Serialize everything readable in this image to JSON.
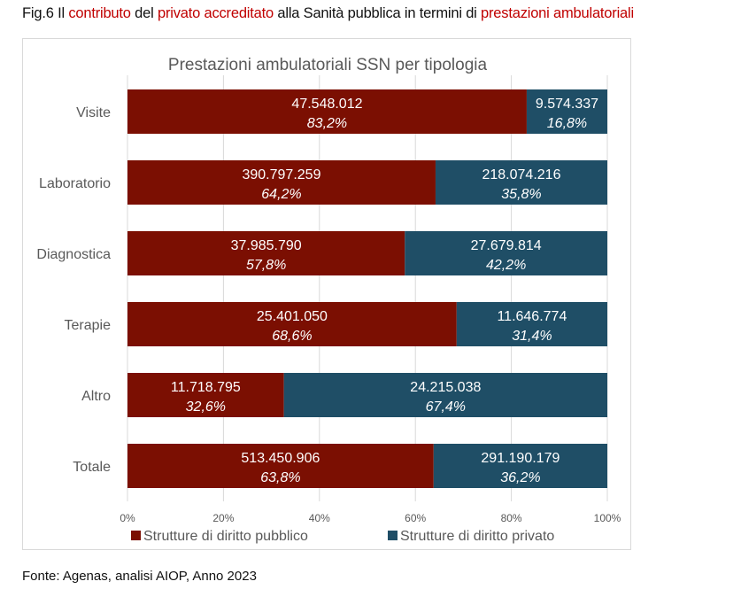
{
  "caption": {
    "parts": [
      {
        "text": "Fig.6 Il ",
        "highlight": false
      },
      {
        "text": "contributo",
        "highlight": true
      },
      {
        "text": " del ",
        "highlight": false
      },
      {
        "text": "privato accreditato",
        "highlight": true
      },
      {
        "text": " alla Sanità pubblica in termini di ",
        "highlight": false
      },
      {
        "text": "prestazioni ambulatoriali",
        "highlight": true
      }
    ]
  },
  "source": "Fonte: Agenas, analisi AIOP, Anno 2023",
  "colors": {
    "public": "#7b0f02",
    "private": "#1f4e66",
    "highlight": "#c00000",
    "grid": "#d9d9d9",
    "axis_text": "#595959"
  },
  "chart_data": {
    "type": "bar",
    "orientation": "horizontal",
    "stacked": "percent",
    "title": "Prestazioni ambulatoriali SSN per tipologia",
    "xlabel": "",
    "ylabel": "",
    "xlim": [
      0,
      100
    ],
    "x_ticks": [
      "0%",
      "20%",
      "40%",
      "60%",
      "80%",
      "100%"
    ],
    "grid": true,
    "legend_position": "bottom",
    "categories": [
      "Visite",
      "Laboratorio",
      "Diagnostica",
      "Terapie",
      "Altro",
      "Totale"
    ],
    "series": [
      {
        "name": "Strutture di diritto pubblico",
        "color_key": "public",
        "values": [
          47548012,
          390797259,
          37985790,
          25401050,
          11718795,
          513450906
        ],
        "value_labels": [
          "47.548.012",
          "390.797.259",
          "37.985.790",
          "25.401.050",
          "11.718.795",
          "513.450.906"
        ],
        "percent": [
          83.2,
          64.2,
          57.8,
          68.6,
          32.6,
          63.8
        ],
        "percent_labels": [
          "83,2%",
          "64,2%",
          "57,8%",
          "68,6%",
          "32,6%",
          "63,8%"
        ]
      },
      {
        "name": "Strutture di diritto privato",
        "color_key": "private",
        "values": [
          9574337,
          218074216,
          27679814,
          11646774,
          24215038,
          291190179
        ],
        "value_labels": [
          "9.574.337",
          "218.074.216",
          "27.679.814",
          "11.646.774",
          "24.215.038",
          "291.190.179"
        ],
        "percent": [
          16.8,
          35.8,
          42.2,
          31.4,
          67.4,
          36.2
        ],
        "percent_labels": [
          "16,8%",
          "35,8%",
          "42,2%",
          "31,4%",
          "67,4%",
          "36,2%"
        ]
      }
    ]
  }
}
